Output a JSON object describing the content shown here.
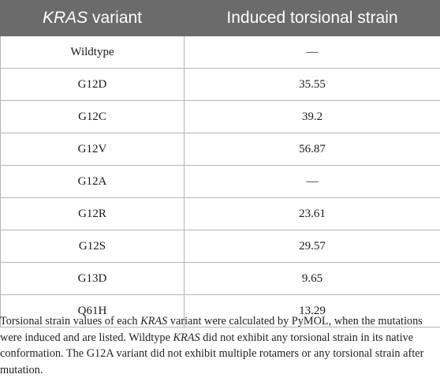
{
  "table": {
    "header": {
      "col1_italic": "KRAS",
      "col1_rest": " variant",
      "col2": "Induced torsional strain"
    },
    "rows": [
      {
        "variant": "Wildtype",
        "strain": "—"
      },
      {
        "variant": "G12D",
        "strain": "35.55"
      },
      {
        "variant": "G12C",
        "strain": "39.2"
      },
      {
        "variant": "G12V",
        "strain": "56.87"
      },
      {
        "variant": "G12A",
        "strain": "—"
      },
      {
        "variant": "G12R",
        "strain": "23.61"
      },
      {
        "variant": "G12S",
        "strain": "29.57"
      },
      {
        "variant": "G13D",
        "strain": "9.65"
      },
      {
        "variant": "Q61H",
        "strain": "13.29"
      }
    ]
  },
  "caption": {
    "part1": "Torsional strain values of each ",
    "kras1": "KRAS",
    "part2": " variant were calculated by PyMOL, when the mutations were induced and are listed. Wildtype ",
    "kras2": "KRAS",
    "part3": " did not exhibit any torsional strain in its native conformation. The G12A variant did not exhibit multiple rotamers or any torsional strain after mutation."
  },
  "colors": {
    "header_bg": "#6b6b6b",
    "header_text": "#ffffff",
    "border": "#b5b5b5"
  }
}
